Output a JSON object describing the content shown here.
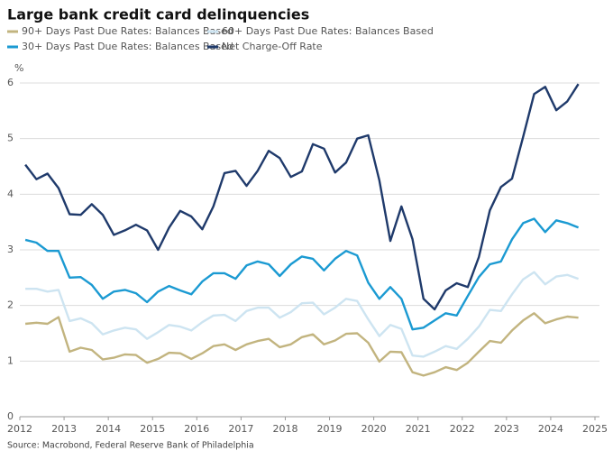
{
  "chart_data": {
    "type": "line",
    "title": "Large bank credit card delinquencies",
    "y_label": "%",
    "source": "Source: Macrobond, Federal Reserve Bank of Philadelphia",
    "x": [
      2012.125,
      2012.375,
      2012.625,
      2012.875,
      2013.125,
      2013.375,
      2013.625,
      2013.875,
      2014.125,
      2014.375,
      2014.625,
      2014.875,
      2015.125,
      2015.375,
      2015.625,
      2015.875,
      2016.125,
      2016.375,
      2016.625,
      2016.875,
      2017.125,
      2017.375,
      2017.625,
      2017.875,
      2018.125,
      2018.375,
      2018.625,
      2018.875,
      2019.125,
      2019.375,
      2019.625,
      2019.875,
      2020.125,
      2020.375,
      2020.625,
      2020.875,
      2021.125,
      2021.375,
      2021.625,
      2021.875,
      2022.125,
      2022.375,
      2022.625,
      2022.875,
      2023.125,
      2023.375,
      2023.625,
      2023.875,
      2024.125,
      2024.375,
      2024.625
    ],
    "series": [
      {
        "name": "90+ Days Past Due Rates: Balances Based",
        "color": "#c2b47f",
        "values": [
          1.67,
          1.69,
          1.67,
          1.79,
          1.17,
          1.24,
          1.2,
          1.03,
          1.06,
          1.12,
          1.11,
          0.97,
          1.04,
          1.15,
          1.14,
          1.04,
          1.14,
          1.27,
          1.3,
          1.2,
          1.3,
          1.36,
          1.4,
          1.25,
          1.3,
          1.43,
          1.48,
          1.3,
          1.37,
          1.49,
          1.5,
          1.33,
          0.99,
          1.17,
          1.16,
          0.8,
          0.74,
          0.8,
          0.89,
          0.84,
          0.97,
          1.17,
          1.36,
          1.33,
          1.55,
          1.73,
          1.86,
          1.68,
          1.75,
          1.8,
          1.78
        ]
      },
      {
        "name": "60+ Days Past Due Rates: Balances Based",
        "color": "#cde4f1",
        "values": [
          2.3,
          2.3,
          2.25,
          2.28,
          1.72,
          1.77,
          1.68,
          1.48,
          1.55,
          1.6,
          1.57,
          1.4,
          1.52,
          1.65,
          1.62,
          1.55,
          1.7,
          1.82,
          1.83,
          1.72,
          1.9,
          1.96,
          1.96,
          1.78,
          1.88,
          2.04,
          2.05,
          1.84,
          1.96,
          2.12,
          2.08,
          1.75,
          1.45,
          1.65,
          1.58,
          1.1,
          1.08,
          1.17,
          1.27,
          1.22,
          1.4,
          1.62,
          1.92,
          1.9,
          2.2,
          2.47,
          2.6,
          2.38,
          2.52,
          2.55,
          2.48
        ]
      },
      {
        "name": "30+ Days Past Due Rates: Balances Based",
        "color": "#1b9ad2",
        "values": [
          3.18,
          3.13,
          2.98,
          2.98,
          2.5,
          2.51,
          2.37,
          2.12,
          2.25,
          2.28,
          2.22,
          2.06,
          2.25,
          2.35,
          2.27,
          2.2,
          2.43,
          2.58,
          2.58,
          2.48,
          2.72,
          2.79,
          2.74,
          2.53,
          2.74,
          2.88,
          2.84,
          2.63,
          2.84,
          2.98,
          2.9,
          2.41,
          2.12,
          2.33,
          2.12,
          1.57,
          1.6,
          1.73,
          1.86,
          1.82,
          2.17,
          2.51,
          2.74,
          2.79,
          3.19,
          3.48,
          3.56,
          3.32,
          3.53,
          3.48,
          3.4
        ]
      },
      {
        "name": "Net Charge-Off Rate",
        "color": "#1f3a6b",
        "values": [
          4.53,
          4.27,
          4.37,
          4.11,
          3.64,
          3.63,
          3.82,
          3.63,
          3.27,
          3.35,
          3.45,
          3.35,
          3.0,
          3.4,
          3.7,
          3.6,
          3.37,
          3.78,
          4.38,
          4.42,
          4.15,
          4.42,
          4.78,
          4.65,
          4.31,
          4.41,
          4.9,
          4.82,
          4.39,
          4.57,
          5.0,
          5.06,
          4.25,
          3.16,
          3.78,
          3.19,
          2.12,
          1.93,
          2.27,
          2.4,
          2.33,
          2.87,
          3.71,
          4.13,
          4.28,
          5.03,
          5.8,
          5.93,
          5.51,
          5.67,
          5.98
        ]
      }
    ],
    "xlim": [
      2012,
      2025
    ],
    "xticks": [
      2012,
      2013,
      2014,
      2015,
      2016,
      2017,
      2018,
      2019,
      2020,
      2021,
      2022,
      2023,
      2024,
      2025
    ],
    "ylim": [
      0,
      6
    ],
    "yticks": [
      0,
      1,
      2,
      3,
      4,
      5,
      6
    ],
    "grid": true
  }
}
